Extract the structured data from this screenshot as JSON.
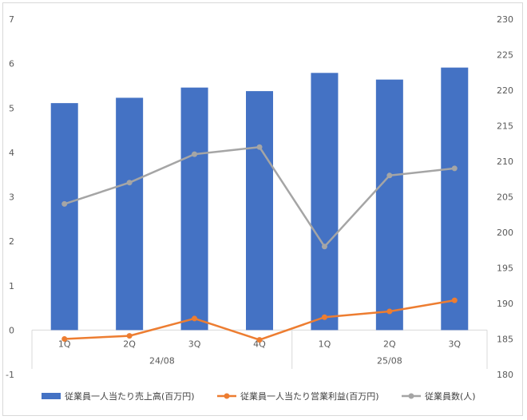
{
  "chart_data": {
    "type": "bar",
    "groups": [
      {
        "label": "24/08",
        "quarters": [
          "1Q",
          "2Q",
          "3Q",
          "4Q"
        ]
      },
      {
        "label": "25/08",
        "quarters": [
          "1Q",
          "2Q",
          "3Q"
        ]
      }
    ],
    "categories": [
      "1Q",
      "2Q",
      "3Q",
      "4Q",
      "1Q",
      "2Q",
      "3Q"
    ],
    "series": [
      {
        "name": "従業員一人当たり売上高(百万円)",
        "kind": "bar",
        "axis": "left",
        "color": "#4472c4",
        "values": [
          5.11,
          5.23,
          5.46,
          5.38,
          5.79,
          5.64,
          5.91
        ]
      },
      {
        "name": "従業員一人当たり営業利益(百万円)",
        "kind": "line",
        "axis": "left",
        "color": "#ed7d31",
        "values": [
          -0.2,
          -0.13,
          0.26,
          -0.22,
          0.29,
          0.42,
          0.67
        ]
      },
      {
        "name": "従業員数(人)",
        "kind": "line",
        "axis": "right",
        "color": "#a5a5a5",
        "values": [
          204,
          207,
          211,
          212,
          198,
          208,
          209
        ]
      }
    ],
    "y_left": {
      "min": -1,
      "max": 7,
      "step": 1,
      "ticks": [
        "-1",
        "0",
        "1",
        "2",
        "3",
        "4",
        "5",
        "6",
        "7"
      ]
    },
    "y_right": {
      "min": 180,
      "max": 230,
      "step": 5,
      "ticks": [
        "180",
        "185",
        "190",
        "195",
        "200",
        "205",
        "210",
        "215",
        "220",
        "225",
        "230"
      ]
    },
    "grid": false,
    "legend_position": "bottom"
  }
}
